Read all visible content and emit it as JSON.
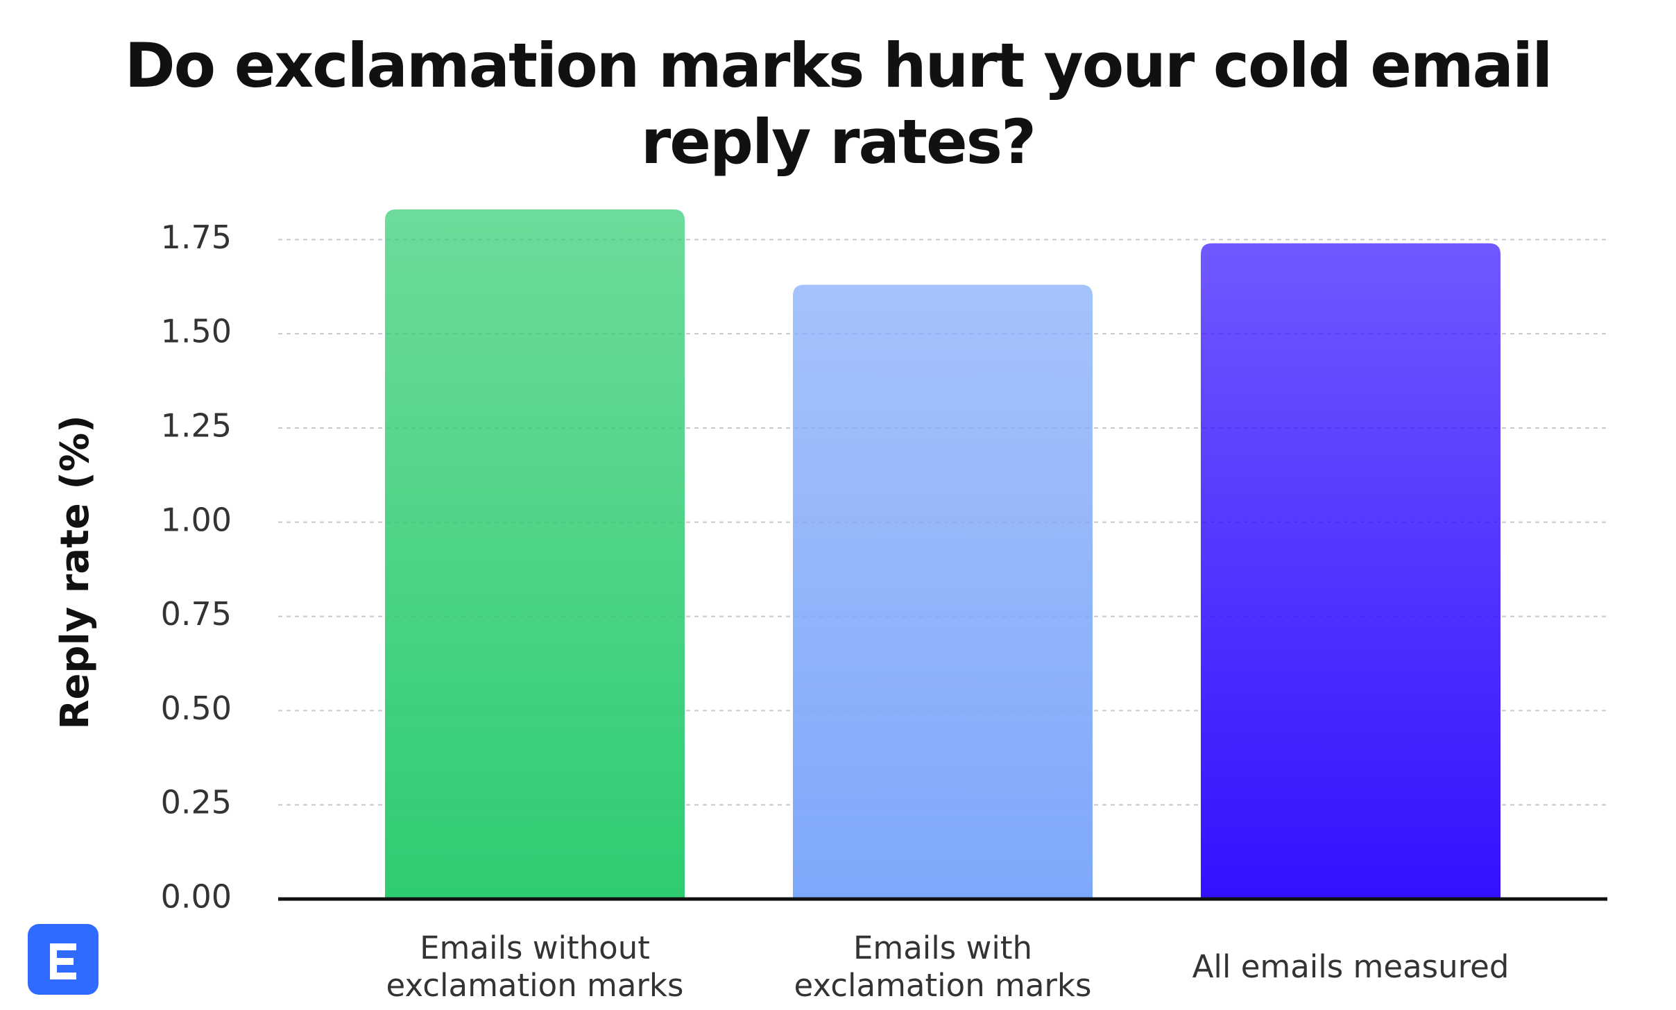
{
  "chart_data": {
    "type": "bar",
    "title": "Do exclamation marks hurt your cold email reply rates?",
    "y_label": "Reply rate (%)",
    "categories": [
      "Emails without exclamation marks",
      "Emails with exclamation marks",
      "All emails measured"
    ],
    "values": [
      1.83,
      1.63,
      1.74
    ],
    "colors": [
      "#2ecc71",
      "#7ea8fa",
      "#3311ff"
    ],
    "ylim": [
      0,
      1.85
    ],
    "yticks": [
      {
        "value": 0,
        "label": "0.00"
      },
      {
        "value": 0.25,
        "label": "0.25"
      },
      {
        "value": 0.5,
        "label": "0.50"
      },
      {
        "value": 0.75,
        "label": "0.75"
      },
      {
        "value": 1,
        "label": "1.00"
      },
      {
        "value": 1.25,
        "label": "1.25"
      },
      {
        "value": 1.5,
        "label": "1.50"
      },
      {
        "value": 1.75,
        "label": "1.75"
      }
    ],
    "grid": true
  }
}
